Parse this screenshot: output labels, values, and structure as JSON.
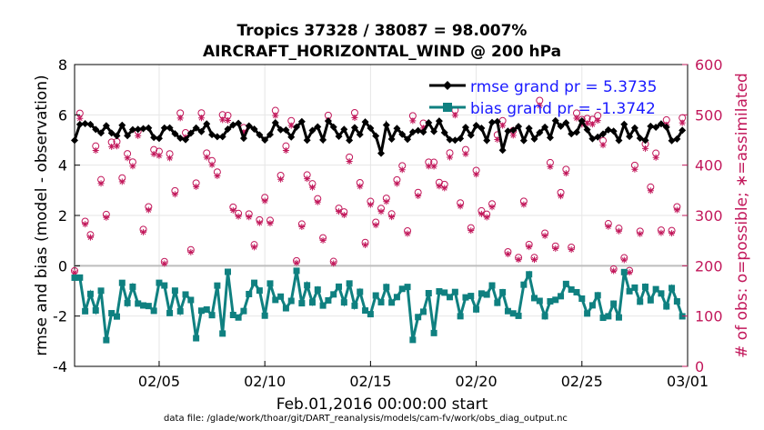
{
  "chart_data": {
    "type": "line",
    "title": "Tropics 37328 / 38087 = 98.007%",
    "subtitle": "AIRCRAFT_HORIZONTAL_WIND @ 200 hPa",
    "xlabel": "Feb.01,2016 00:00:00 start",
    "ylabel_left": "rmse and bias (model - observation)",
    "ylabel_right": "# of obs: o=possible; ∗=assimilated",
    "footer": "data file: /glade/work/thoar/git/DART_reanalysis/models/cam-fv/work/obs_diag_output.nc",
    "xlim": [
      1,
      30
    ],
    "ylim_left": [
      -4,
      8
    ],
    "ylim_right": [
      0,
      600
    ],
    "x_ticks": [
      {
        "x": 5,
        "label": "02/05"
      },
      {
        "x": 10,
        "label": "02/10"
      },
      {
        "x": 15,
        "label": "02/15"
      },
      {
        "x": 20,
        "label": "02/20"
      },
      {
        "x": 25,
        "label": "02/25"
      },
      {
        "x": 30,
        "label": "03/01"
      }
    ],
    "y_ticks_left": [
      "-4",
      "-2",
      "0",
      "2",
      "4",
      "6",
      "8"
    ],
    "y_ticks_right": [
      "0",
      "100",
      "200",
      "300",
      "400",
      "500",
      "600"
    ],
    "legend": [
      {
        "label": "rmse grand pr = 5.3735",
        "color": "#000000"
      },
      {
        "label": "bias grand pr = -1.3742",
        "color": "#0f8080"
      }
    ],
    "colors": {
      "rmse": "#000000",
      "bias": "#0f8080",
      "obs": "#c2185b",
      "zero_line": "#bdbdbd",
      "label_right": "#c2185b"
    },
    "rmse_summary": {
      "mean": 5.37,
      "min": 4.3,
      "max": 6.1,
      "points_per_day": 4
    },
    "bias_summary": {
      "mean": -1.37,
      "min": -3.0,
      "max": -0.2,
      "points_per_day": 4
    },
    "obs_summary": {
      "possible_range": [
        190,
        530
      ],
      "assimilated_fraction": 0.98
    }
  }
}
